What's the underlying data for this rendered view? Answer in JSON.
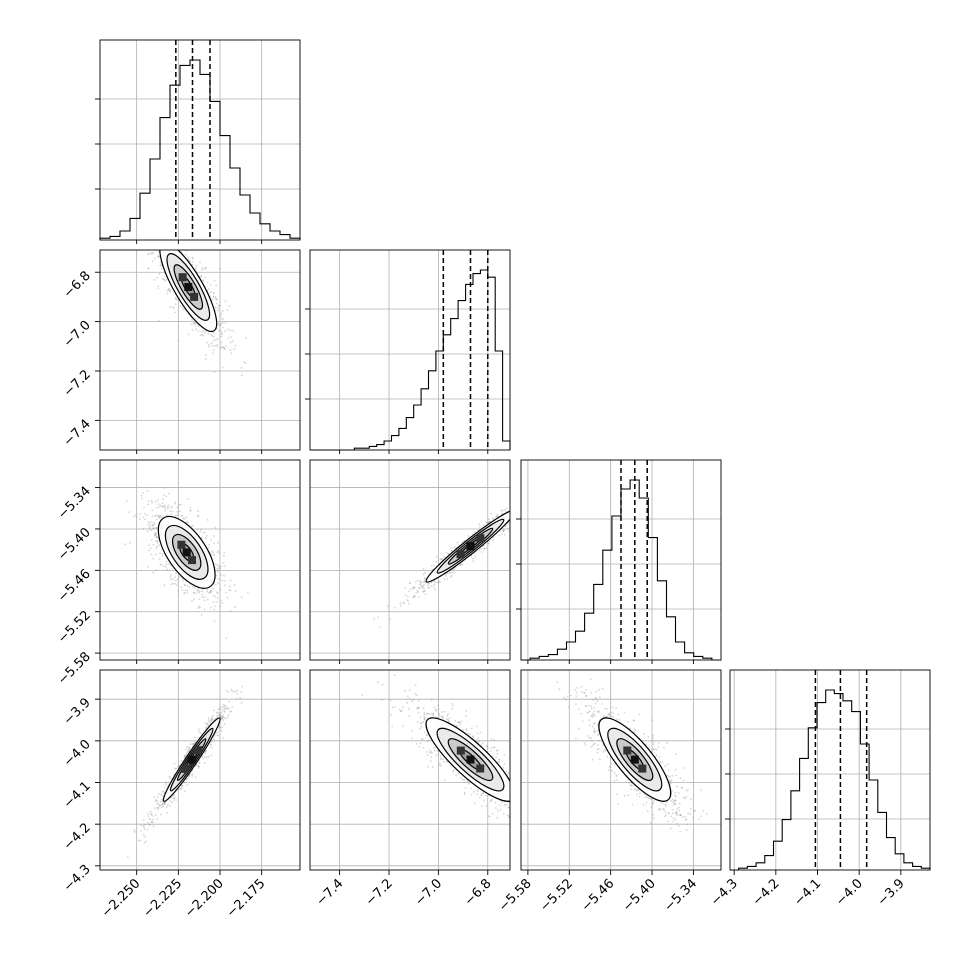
{
  "chart_data": {
    "type": "corner",
    "grid": true,
    "parameters": [
      {
        "range": [
          -2.272,
          -2.152
        ],
        "ticks": [
          "-2.250",
          "-2.225",
          "-2.200",
          "-2.175"
        ],
        "quantiles": [
          -2.2265,
          -2.2165,
          -2.206
        ]
      },
      {
        "range": [
          -7.52,
          -6.71
        ],
        "ticks": [
          "-7.4",
          "-7.2",
          "-7.0",
          "-6.8"
        ],
        "quantiles": [
          -6.98,
          -6.87,
          -6.8
        ]
      },
      {
        "range": [
          -5.59,
          -5.3
        ],
        "ticks": [
          "-5.58",
          "-5.52",
          "-5.46",
          "-5.40",
          "-5.34"
        ],
        "quantiles": [
          -5.445,
          -5.425,
          -5.407
        ]
      },
      {
        "range": [
          -4.31,
          -3.83
        ],
        "ticks": [
          "-4.3",
          "-4.2",
          "-4.1",
          "-4.0",
          "-3.9"
        ],
        "quantiles": [
          -4.105,
          -4.045,
          -3.982
        ]
      }
    ],
    "histograms": [
      [
        0.01,
        0.02,
        0.05,
        0.12,
        0.26,
        0.45,
        0.68,
        0.86,
        0.97,
        1.0,
        0.92,
        0.77,
        0.58,
        0.4,
        0.25,
        0.15,
        0.09,
        0.05,
        0.03,
        0.01
      ],
      [
        0.0,
        0.0,
        0.0,
        0.0,
        0.0,
        0.0,
        0.01,
        0.01,
        0.02,
        0.03,
        0.05,
        0.08,
        0.12,
        0.18,
        0.25,
        0.34,
        0.44,
        0.55,
        0.64,
        0.73,
        0.83,
        0.92,
        0.98,
        1.0,
        0.96,
        0.55,
        0.05
      ],
      [
        0.0,
        0.01,
        0.02,
        0.03,
        0.06,
        0.1,
        0.16,
        0.26,
        0.42,
        0.61,
        0.8,
        0.95,
        1.0,
        0.9,
        0.68,
        0.44,
        0.24,
        0.1,
        0.04,
        0.02,
        0.01,
        0.0
      ],
      [
        0.0,
        0.01,
        0.02,
        0.04,
        0.08,
        0.16,
        0.28,
        0.44,
        0.62,
        0.79,
        0.93,
        1.0,
        0.98,
        0.94,
        0.88,
        0.7,
        0.5,
        0.32,
        0.18,
        0.09,
        0.04,
        0.02,
        0.01
      ]
    ],
    "pairs": [
      {
        "row": 1,
        "col": 0,
        "center": [
          -2.219,
          -6.86
        ],
        "sigma": [
          0.0085,
          0.09
        ],
        "corr": -0.82
      },
      {
        "row": 2,
        "col": 0,
        "center": [
          -2.22,
          -5.434
        ],
        "sigma": [
          0.0085,
          0.026
        ],
        "corr": -0.62
      },
      {
        "row": 2,
        "col": 1,
        "center": [
          -6.87,
          -5.425
        ],
        "sigma": [
          0.09,
          0.026
        ],
        "corr": 0.97
      },
      {
        "row": 3,
        "col": 0,
        "center": [
          -2.217,
          -4.045
        ],
        "sigma": [
          0.0085,
          0.05
        ],
        "corr": 0.97
      },
      {
        "row": 3,
        "col": 1,
        "center": [
          -6.87,
          -4.045
        ],
        "sigma": [
          0.09,
          0.05
        ],
        "corr": -0.85
      },
      {
        "row": 3,
        "col": 2,
        "center": [
          -5.425,
          -4.045
        ],
        "sigma": [
          0.026,
          0.05
        ],
        "corr": -0.8
      }
    ]
  }
}
